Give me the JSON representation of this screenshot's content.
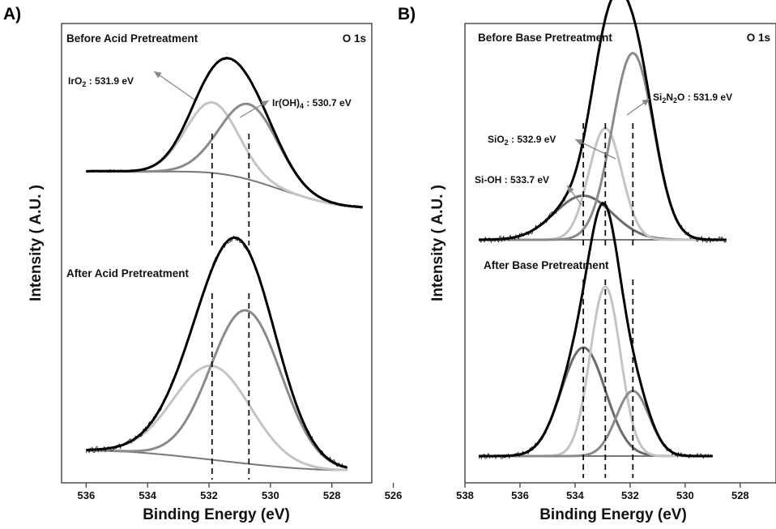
{
  "chart_data": [
    {
      "id": "A",
      "type": "line",
      "panel_label": "A)",
      "xlabel": "Binding Energy (eV)",
      "ylabel": "Intensity ( A.U. )",
      "xlim": [
        536.8,
        526.7
      ],
      "xticks": [
        536,
        534,
        532,
        530,
        528,
        526
      ],
      "reversed_x": true,
      "spectra": [
        {
          "title": "Before Acid Pretreatment",
          "element": "O 1s",
          "x_range": [
            536,
            527
          ],
          "background": {
            "left": 0.0,
            "right": -0.3,
            "hump_center": 531.2,
            "hump_height": 0.13,
            "hump_width": 1.8
          },
          "components": [
            {
              "label_main": "IrO",
              "label_sub": "2",
              "label_rest": " : 531.9 eV",
              "center": 531.9,
              "height": 0.58,
              "width": 0.85,
              "color": "#c4c4c4"
            },
            {
              "label_main": "Ir(OH)",
              "label_sub": "4",
              "label_rest": " : 530.7 eV",
              "center": 530.7,
              "height": 0.62,
              "width": 0.95,
              "color": "#8a8a8a"
            }
          ],
          "markers": [
            531.9,
            530.7
          ]
        },
        {
          "title": "After Acid Pretreatment",
          "x_range": [
            536,
            527.5
          ],
          "background": {
            "left": 0.0,
            "right": -0.08,
            "hump_center": 531.5,
            "hump_height": 0.0,
            "hump_width": 1.5
          },
          "components": [
            {
              "center": 531.9,
              "height": 0.38,
              "width": 1.25,
              "color": "#c4c4c4"
            },
            {
              "center": 530.8,
              "height": 0.62,
              "width": 1.15,
              "color": "#8a8a8a"
            }
          ],
          "markers": [
            531.9,
            530.7
          ]
        }
      ]
    },
    {
      "id": "B",
      "type": "line",
      "panel_label": "B)",
      "xlabel": "Binding Energy (eV)",
      "ylabel": "Intensity ( A.U. )",
      "xlim": [
        538,
        526.7
      ],
      "xticks": [
        538,
        536,
        534,
        532,
        530,
        528
      ],
      "reversed_x": true,
      "spectra": [
        {
          "title": "Before Base Pretreatment",
          "element": "O 1s",
          "x_range": [
            537.5,
            528.5
          ],
          "background": {
            "left": 0.0,
            "right": 0.0,
            "hump_center": 532.5,
            "hump_height": 0.0,
            "hump_width": 1.5
          },
          "components": [
            {
              "label_main": "Si-OH : 533.7 eV",
              "center": 533.7,
              "height": 0.17,
              "width": 1.05,
              "color": "#6a6a6a"
            },
            {
              "label_main": "SiO",
              "label_sub": "2",
              "label_rest": " : 532.9 eV",
              "center": 532.9,
              "height": 0.43,
              "width": 0.6,
              "color": "#c4c4c4"
            },
            {
              "label_main": "Si",
              "label_sub": "2",
              "label_mid": "N",
              "label_sub2": "2",
              "label_rest": "O : 531.9 eV",
              "center": 531.9,
              "height": 0.72,
              "width": 0.75,
              "color": "#8a8a8a"
            }
          ],
          "markers": [
            533.7,
            532.9,
            531.9
          ]
        },
        {
          "title": "After Base Pretreatment",
          "x_range": [
            537.5,
            529
          ],
          "background": {
            "left": 0.0,
            "right": 0.0,
            "hump_center": 533,
            "hump_height": 0.0,
            "hump_width": 1.5
          },
          "components": [
            {
              "center": 533.7,
              "height": 0.5,
              "width": 0.8,
              "color": "#6a6a6a"
            },
            {
              "center": 532.9,
              "height": 0.78,
              "width": 0.55,
              "color": "#c4c4c4"
            },
            {
              "center": 531.9,
              "height": 0.3,
              "width": 0.6,
              "color": "#8a8a8a"
            }
          ],
          "markers": [
            533.7,
            532.9,
            531.9
          ]
        }
      ]
    }
  ]
}
